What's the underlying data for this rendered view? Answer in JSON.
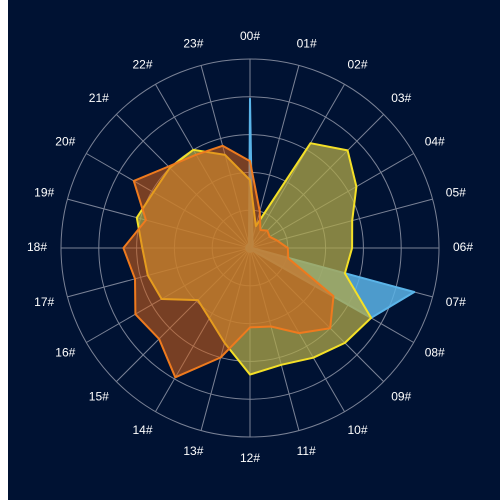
{
  "colors": {
    "background": "#001233",
    "grid": "#7a8296",
    "label": "#ffffff"
  },
  "chart_data": {
    "type": "radar",
    "categories": [
      "00#",
      "01#",
      "02#",
      "03#",
      "04#",
      "05#",
      "06#",
      "07#",
      "08#",
      "09#",
      "10#",
      "11#",
      "12#",
      "13#",
      "14#",
      "15#",
      "16#",
      "17#",
      "18#",
      "19#",
      "20#",
      "21#",
      "22#",
      "23#"
    ],
    "rmax": 100,
    "rings": 5,
    "series": [
      {
        "color": "#5ab4e8",
        "fill": "#5ab4e8",
        "fill_opacity": 0.85,
        "values": [
          79,
          5,
          3,
          2,
          1,
          1,
          1,
          90,
          74,
          2,
          2,
          2,
          2,
          2,
          2,
          2,
          2,
          2,
          2,
          2,
          2,
          2,
          2,
          2
        ]
      },
      {
        "color": "#f4e027",
        "fill": "#b0a84a",
        "fill_opacity": 0.75,
        "values": [
          36,
          12,
          64,
          73,
          65,
          56,
          54,
          52,
          74,
          71,
          67,
          64,
          67,
          52,
          43,
          39,
          54,
          56,
          57,
          62,
          59,
          60,
          60,
          51
        ]
      },
      {
        "color": "#ee7a1e",
        "fill": "#d86518",
        "fill_opacity": 0.55,
        "values": [
          46,
          20,
          11,
          13,
          12,
          15,
          20,
          21,
          51,
          60,
          52,
          43,
          42,
          60,
          79,
          68,
          70,
          63,
          67,
          57,
          71,
          61,
          57,
          56
        ]
      }
    ]
  }
}
